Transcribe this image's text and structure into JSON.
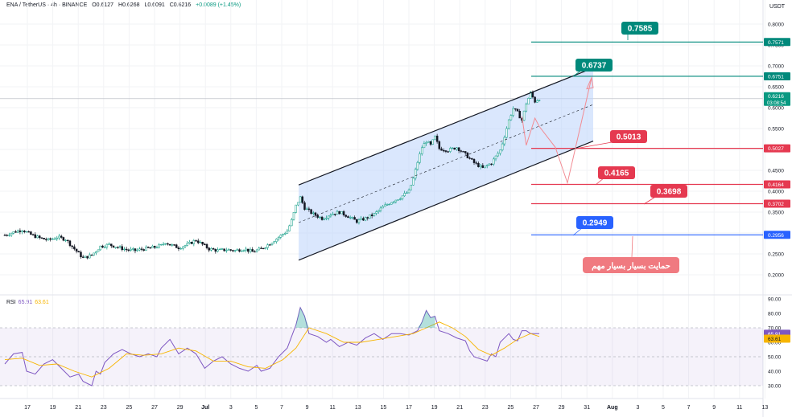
{
  "header": {
    "symbol": "ENA / TetherUS · 4h · BINANCE",
    "open": "O0.6127",
    "high": "H0.6268",
    "low": "L0.6091",
    "close": "C0.6216",
    "change": "+0.0089 (+1.45%)"
  },
  "price_axis": {
    "unit": "USDT",
    "last_price": "0.6216",
    "countdown": "03:08:54"
  },
  "rsi": {
    "label": "RSI",
    "value": "65.91",
    "ma_value": "63.61"
  },
  "callouts": [
    {
      "text": "0.7585",
      "color": "#00897b"
    },
    {
      "text": "0.6737",
      "color": "#00897b"
    },
    {
      "text": "0.5013",
      "color": "#e53950"
    },
    {
      "text": "0.4165",
      "color": "#e53950"
    },
    {
      "text": "0.3698",
      "color": "#e53950"
    },
    {
      "text": "0.2949",
      "color": "#2962ff"
    }
  ],
  "support_note": {
    "text": "حمایت بسیار بسیار مهم",
    "color": "#f07a80"
  },
  "chart_data": [
    {
      "type": "candlestick",
      "x_tick_labels": [
        "17",
        "19",
        "21",
        "23",
        "25",
        "27",
        "29",
        "Jul",
        "3",
        "5",
        "7",
        "9",
        "11",
        "13",
        "15",
        "17",
        "19",
        "21",
        "23",
        "25",
        "27",
        "29",
        "31",
        "Aug",
        "3",
        "5",
        "7",
        "9",
        "11",
        "13"
      ],
      "y_tick_labels": [
        "0.8000",
        "0.7500",
        "0.7000",
        "0.6500",
        "0.6000",
        "0.5500",
        "0.5000",
        "0.4500",
        "0.4000",
        "0.3500",
        "0.3000",
        "0.2500",
        "0.2000"
      ],
      "ylim": [
        0.18,
        0.82
      ],
      "close_path": [
        [
          0,
          0.295
        ],
        [
          4,
          0.302
        ],
        [
          8,
          0.308
        ],
        [
          12,
          0.296
        ],
        [
          16,
          0.288
        ],
        [
          20,
          0.283
        ],
        [
          24,
          0.29
        ],
        [
          28,
          0.285
        ],
        [
          32,
          0.262
        ],
        [
          36,
          0.24
        ],
        [
          40,
          0.247
        ],
        [
          44,
          0.268
        ],
        [
          48,
          0.272
        ],
        [
          52,
          0.266
        ],
        [
          56,
          0.26
        ],
        [
          60,
          0.258
        ],
        [
          64,
          0.262
        ],
        [
          68,
          0.265
        ],
        [
          72,
          0.27
        ],
        [
          74,
          0.278
        ],
        [
          76,
          0.272
        ],
        [
          80,
          0.265
        ],
        [
          84,
          0.272
        ],
        [
          88,
          0.283
        ],
        [
          90,
          0.276
        ],
        [
          94,
          0.262
        ],
        [
          98,
          0.258
        ],
        [
          102,
          0.26
        ],
        [
          106,
          0.258
        ],
        [
          110,
          0.262
        ],
        [
          114,
          0.255
        ],
        [
          118,
          0.262
        ],
        [
          122,
          0.275
        ],
        [
          126,
          0.29
        ],
        [
          130,
          0.305
        ],
        [
          132,
          0.33
        ],
        [
          134,
          0.365
        ],
        [
          136,
          0.385
        ],
        [
          138,
          0.36
        ],
        [
          142,
          0.345
        ],
        [
          146,
          0.335
        ],
        [
          150,
          0.345
        ],
        [
          154,
          0.35
        ],
        [
          158,
          0.34
        ],
        [
          162,
          0.328
        ],
        [
          166,
          0.335
        ],
        [
          170,
          0.345
        ],
        [
          174,
          0.362
        ],
        [
          178,
          0.375
        ],
        [
          182,
          0.385
        ],
        [
          186,
          0.4
        ],
        [
          188,
          0.43
        ],
        [
          190,
          0.47
        ],
        [
          192,
          0.505
        ],
        [
          194,
          0.52
        ],
        [
          196,
          0.51
        ],
        [
          198,
          0.53
        ],
        [
          200,
          0.502
        ],
        [
          204,
          0.498
        ],
        [
          208,
          0.505
        ],
        [
          212,
          0.488
        ],
        [
          216,
          0.468
        ],
        [
          220,
          0.455
        ],
        [
          224,
          0.468
        ],
        [
          228,
          0.498
        ],
        [
          230,
          0.532
        ],
        [
          232,
          0.57
        ],
        [
          234,
          0.598
        ],
        [
          236,
          0.588
        ],
        [
          238,
          0.57
        ],
        [
          240,
          0.61
        ],
        [
          242,
          0.635
        ],
        [
          244,
          0.615
        ],
        [
          246,
          0.622
        ]
      ],
      "levels": [
        0.7571,
        0.6751,
        0.5027,
        0.4164,
        0.3702,
        0.2956
      ],
      "channel": {
        "lower_start": 0.235,
        "lower_end": 0.52,
        "upper_start": 0.415,
        "upper_end": 0.695,
        "x_start": 136,
        "x_end": 246
      }
    },
    {
      "type": "line",
      "series_name": "RSI",
      "ylim": [
        30,
        90
      ],
      "y_tick_labels": [
        "90.00",
        "80.00",
        "70.00",
        "60.00",
        "50.00",
        "40.00",
        "30.00"
      ],
      "bands": [
        70,
        50,
        30
      ],
      "rsi_path": [
        [
          0,
          45
        ],
        [
          4,
          52
        ],
        [
          8,
          53
        ],
        [
          10,
          40
        ],
        [
          14,
          38
        ],
        [
          18,
          45
        ],
        [
          22,
          48
        ],
        [
          26,
          42
        ],
        [
          30,
          36
        ],
        [
          34,
          38
        ],
        [
          36,
          33
        ],
        [
          40,
          30
        ],
        [
          42,
          40
        ],
        [
          44,
          38
        ],
        [
          46,
          46
        ],
        [
          50,
          52
        ],
        [
          54,
          55
        ],
        [
          58,
          52
        ],
        [
          62,
          50
        ],
        [
          66,
          52
        ],
        [
          70,
          50
        ],
        [
          72,
          56
        ],
        [
          76,
          62
        ],
        [
          80,
          52
        ],
        [
          84,
          56
        ],
        [
          88,
          52
        ],
        [
          92,
          42
        ],
        [
          96,
          47
        ],
        [
          100,
          50
        ],
        [
          104,
          45
        ],
        [
          108,
          42
        ],
        [
          112,
          40
        ],
        [
          116,
          44
        ],
        [
          118,
          40
        ],
        [
          122,
          42
        ],
        [
          126,
          50
        ],
        [
          130,
          56
        ],
        [
          134,
          72
        ],
        [
          136,
          84
        ],
        [
          138,
          78
        ],
        [
          140,
          66
        ],
        [
          144,
          64
        ],
        [
          148,
          60
        ],
        [
          150,
          62
        ],
        [
          154,
          57
        ],
        [
          158,
          60
        ],
        [
          162,
          58
        ],
        [
          166,
          63
        ],
        [
          170,
          66
        ],
        [
          174,
          62
        ],
        [
          178,
          66
        ],
        [
          182,
          66
        ],
        [
          186,
          65
        ],
        [
          190,
          68
        ],
        [
          192,
          74
        ],
        [
          194,
          82
        ],
        [
          196,
          77
        ],
        [
          198,
          78
        ],
        [
          200,
          68
        ],
        [
          204,
          66
        ],
        [
          208,
          63
        ],
        [
          212,
          61
        ],
        [
          214,
          54
        ],
        [
          216,
          50
        ],
        [
          218,
          49
        ],
        [
          222,
          47
        ],
        [
          224,
          52
        ],
        [
          226,
          50
        ],
        [
          228,
          60
        ],
        [
          232,
          66
        ],
        [
          234,
          62
        ],
        [
          236,
          61
        ],
        [
          238,
          68
        ],
        [
          240,
          68
        ],
        [
          242,
          66
        ],
        [
          244,
          66
        ],
        [
          246,
          66
        ]
      ],
      "ma_path": [
        [
          0,
          48
        ],
        [
          8,
          49
        ],
        [
          16,
          44
        ],
        [
          24,
          45
        ],
        [
          32,
          40
        ],
        [
          40,
          36
        ],
        [
          48,
          42
        ],
        [
          56,
          52
        ],
        [
          64,
          51
        ],
        [
          72,
          52
        ],
        [
          80,
          56
        ],
        [
          88,
          54
        ],
        [
          96,
          47
        ],
        [
          104,
          47
        ],
        [
          112,
          43
        ],
        [
          120,
          42
        ],
        [
          128,
          48
        ],
        [
          134,
          56
        ],
        [
          140,
          70
        ],
        [
          148,
          66
        ],
        [
          156,
          60
        ],
        [
          164,
          60
        ],
        [
          172,
          62
        ],
        [
          180,
          64
        ],
        [
          188,
          66
        ],
        [
          194,
          70
        ],
        [
          200,
          74
        ],
        [
          206,
          70
        ],
        [
          212,
          64
        ],
        [
          218,
          55
        ],
        [
          224,
          51
        ],
        [
          230,
          56
        ],
        [
          236,
          62
        ],
        [
          242,
          66
        ],
        [
          246,
          64
        ]
      ]
    }
  ]
}
